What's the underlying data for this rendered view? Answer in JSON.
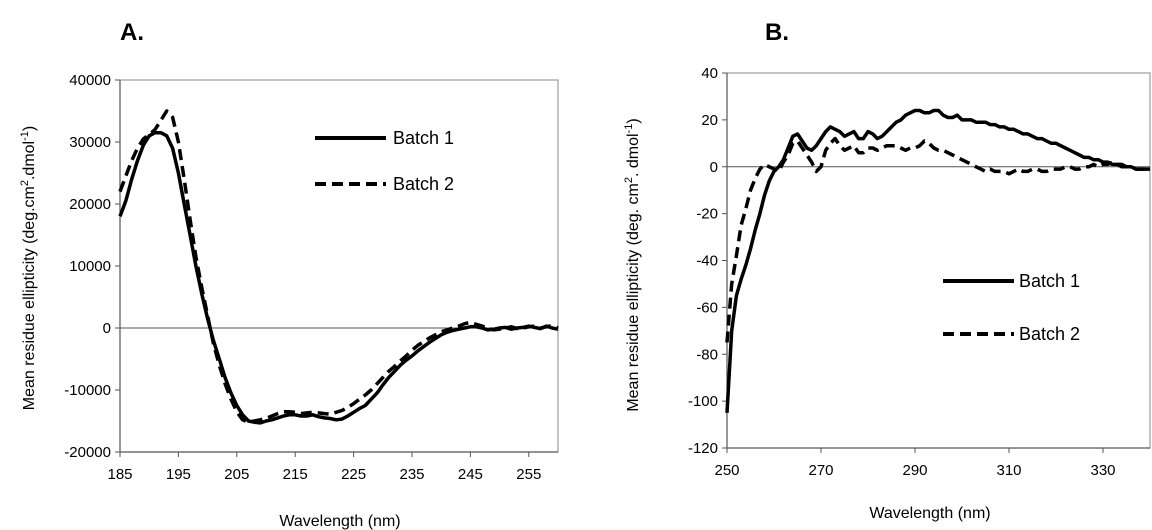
{
  "chart_data": [
    {
      "type": "line",
      "panel_label": "A.",
      "xlabel": "Wavelength (nm)",
      "ylabel": "Mean residue ellipticity  (deg.cm2.dmol-1)",
      "ylabel_parts": {
        "pre": "Mean residue ellipticity  (deg.cm",
        "sup1": "2",
        "mid": ".dmol",
        "sup2": "-1",
        "post": ")"
      },
      "xlim": [
        185,
        260
      ],
      "ylim": [
        -20000,
        40000
      ],
      "x_ticks": [
        185,
        195,
        205,
        215,
        225,
        235,
        245,
        255
      ],
      "y_ticks": [
        -20000,
        -10000,
        0,
        10000,
        20000,
        30000,
        40000
      ],
      "y_tick_labels": [
        "-20000",
        "-10000",
        "0",
        "10000",
        "20000",
        "30000",
        "40000"
      ],
      "legend_position": "top-right",
      "grid": false,
      "series": [
        {
          "name": "Batch 1",
          "style": "solid",
          "x": [
            185,
            186,
            187,
            188,
            189,
            190,
            191,
            192,
            193,
            194,
            195,
            196,
            197,
            198,
            199,
            200,
            201,
            202,
            203,
            204,
            205,
            206,
            207,
            208,
            209,
            210,
            211,
            212,
            213,
            214,
            215,
            216,
            217,
            218,
            219,
            220,
            221,
            222,
            223,
            224,
            225,
            226,
            227,
            228,
            229,
            230,
            231,
            232,
            233,
            234,
            235,
            236,
            237,
            238,
            239,
            240,
            241,
            242,
            243,
            244,
            245,
            246,
            247,
            248,
            249,
            250,
            251,
            252,
            253,
            254,
            255,
            256,
            257,
            258,
            259,
            260
          ],
          "y": [
            18000,
            20500,
            24000,
            27000,
            29500,
            31000,
            31500,
            31500,
            31000,
            29000,
            25000,
            20000,
            15000,
            10000,
            5500,
            1500,
            -2000,
            -5000,
            -8000,
            -10500,
            -12500,
            -14000,
            -15000,
            -15200,
            -15300,
            -15000,
            -14800,
            -14500,
            -14200,
            -14000,
            -14000,
            -14200,
            -14200,
            -14000,
            -14300,
            -14500,
            -14600,
            -14800,
            -14700,
            -14200,
            -13600,
            -13000,
            -12500,
            -11500,
            -10500,
            -9200,
            -8000,
            -7000,
            -6000,
            -5200,
            -4500,
            -3700,
            -3000,
            -2300,
            -1700,
            -1100,
            -700,
            -400,
            -200,
            0,
            200,
            200,
            0,
            -300,
            -200,
            0,
            100,
            -200,
            0,
            100,
            300,
            100,
            -100,
            300,
            0,
            -200
          ]
        },
        {
          "name": "Batch 2",
          "style": "dashed",
          "x": [
            185,
            186,
            187,
            188,
            189,
            190,
            191,
            192,
            193,
            194,
            195,
            196,
            197,
            198,
            199,
            200,
            201,
            202,
            203,
            204,
            205,
            206,
            207,
            208,
            209,
            210,
            211,
            212,
            213,
            214,
            215,
            216,
            217,
            218,
            219,
            220,
            221,
            222,
            223,
            224,
            225,
            226,
            227,
            228,
            229,
            230,
            231,
            232,
            233,
            234,
            235,
            236,
            237,
            238,
            239,
            240,
            241,
            242,
            243,
            244,
            245,
            246,
            247,
            248,
            249,
            250,
            251,
            252,
            253,
            254,
            255,
            256,
            257,
            258,
            259,
            260
          ],
          "y": [
            22000,
            24500,
            27000,
            29000,
            30500,
            31200,
            32000,
            33500,
            35000,
            34000,
            30000,
            24000,
            17500,
            11500,
            6500,
            2000,
            -2500,
            -6000,
            -9000,
            -11500,
            -13500,
            -14800,
            -15200,
            -15000,
            -14800,
            -14600,
            -14200,
            -13800,
            -13500,
            -13500,
            -13600,
            -13800,
            -13700,
            -13600,
            -13700,
            -13800,
            -13900,
            -13600,
            -13300,
            -12800,
            -12200,
            -11500,
            -10800,
            -10000,
            -9000,
            -8000,
            -7000,
            -6200,
            -5300,
            -4500,
            -3600,
            -2800,
            -2200,
            -1600,
            -1100,
            -600,
            -300,
            0,
            300,
            700,
            900,
            600,
            300,
            0,
            -300,
            -200,
            0,
            200,
            -100,
            0,
            200,
            300,
            0,
            200,
            400,
            0
          ]
        }
      ]
    },
    {
      "type": "line",
      "panel_label": "B.",
      "xlabel": "Wavelength (nm)",
      "ylabel": "Mean residue ellipticity  (deg. cm2. dmol-1)",
      "ylabel_parts": {
        "pre": "Mean residue ellipticity  (deg. cm",
        "sup1": "2",
        "mid": ". dmol",
        "sup2": "-1",
        "post": ")"
      },
      "xlim": [
        250,
        340
      ],
      "ylim": [
        -120,
        40
      ],
      "x_ticks": [
        250,
        270,
        290,
        310,
        330
      ],
      "y_ticks": [
        -120,
        -100,
        -80,
        -60,
        -40,
        -20,
        0,
        20,
        40
      ],
      "y_tick_labels": [
        "-120",
        "-100",
        "-80",
        "-60",
        "-40",
        "-20",
        "0",
        "20",
        "40"
      ],
      "legend_position": "center-right",
      "grid": false,
      "series": [
        {
          "name": "Batch 1",
          "style": "solid",
          "x": [
            250,
            251,
            252,
            253,
            254,
            255,
            256,
            257,
            258,
            259,
            260,
            261,
            262,
            263,
            264,
            265,
            266,
            267,
            268,
            269,
            270,
            271,
            272,
            273,
            274,
            275,
            276,
            277,
            278,
            279,
            280,
            281,
            282,
            283,
            284,
            285,
            286,
            287,
            288,
            289,
            290,
            291,
            292,
            293,
            294,
            295,
            296,
            297,
            298,
            299,
            300,
            301,
            302,
            303,
            304,
            305,
            306,
            307,
            308,
            309,
            310,
            311,
            312,
            313,
            314,
            315,
            316,
            317,
            318,
            319,
            320,
            321,
            322,
            323,
            324,
            325,
            326,
            327,
            328,
            329,
            330,
            331,
            332,
            333,
            334,
            335,
            336,
            337,
            338,
            339,
            340
          ],
          "y": [
            -105,
            -70,
            -55,
            -48,
            -42,
            -35,
            -27,
            -20,
            -12,
            -6,
            -2,
            0,
            3,
            8,
            13,
            14,
            11,
            8,
            7,
            9,
            12,
            15,
            17,
            16,
            15,
            13,
            14,
            15,
            12,
            12,
            15,
            14,
            12,
            13,
            15,
            17,
            19,
            20,
            22,
            23,
            24,
            24,
            23,
            23,
            24,
            24,
            22,
            21,
            21,
            22,
            20,
            20,
            20,
            19,
            19,
            19,
            18,
            18,
            17,
            17,
            16,
            16,
            15,
            14,
            14,
            13,
            12,
            12,
            11,
            10,
            10,
            9,
            8,
            7,
            6,
            5,
            4,
            4,
            3,
            3,
            2,
            2,
            1,
            1,
            0,
            0,
            0,
            -1,
            -1,
            -1,
            -1
          ]
        },
        {
          "name": "Batch 2",
          "style": "dashed",
          "x": [
            250,
            251,
            252,
            253,
            254,
            255,
            256,
            257,
            258,
            259,
            260,
            261,
            262,
            263,
            264,
            265,
            266,
            267,
            268,
            269,
            270,
            271,
            272,
            273,
            274,
            275,
            276,
            277,
            278,
            279,
            280,
            281,
            282,
            283,
            284,
            285,
            286,
            287,
            288,
            289,
            290,
            291,
            292,
            293,
            294,
            295,
            296,
            297,
            298,
            299,
            300,
            301,
            302,
            303,
            304,
            305,
            306,
            307,
            308,
            309,
            310,
            311,
            312,
            313,
            314,
            315,
            316,
            317,
            318,
            319,
            320,
            321,
            322,
            323,
            324,
            325,
            326,
            327,
            328,
            329,
            330,
            331,
            332,
            333,
            334,
            335,
            336,
            337,
            338,
            339,
            340
          ],
          "y": [
            -75,
            -50,
            -38,
            -25,
            -18,
            -10,
            -5,
            -1,
            1,
            0,
            -1,
            -2,
            2,
            5,
            10,
            11,
            8,
            5,
            2,
            -2,
            0,
            7,
            10,
            12,
            9,
            7,
            8,
            9,
            6,
            6,
            8,
            8,
            7,
            8,
            9,
            9,
            9,
            8,
            7,
            8,
            8,
            9,
            11,
            10,
            8,
            7,
            7,
            6,
            5,
            4,
            3,
            2,
            1,
            0,
            -1,
            -2,
            -1,
            -2,
            -2,
            -2,
            -3,
            -2,
            -1,
            -2,
            -2,
            -1,
            -1,
            -2,
            -2,
            -1,
            -1,
            -1,
            0,
            0,
            -1,
            -1,
            0,
            0,
            1,
            0,
            1,
            1,
            2,
            1,
            1,
            0,
            0,
            -1,
            -1,
            -1,
            -1
          ]
        }
      ]
    }
  ]
}
